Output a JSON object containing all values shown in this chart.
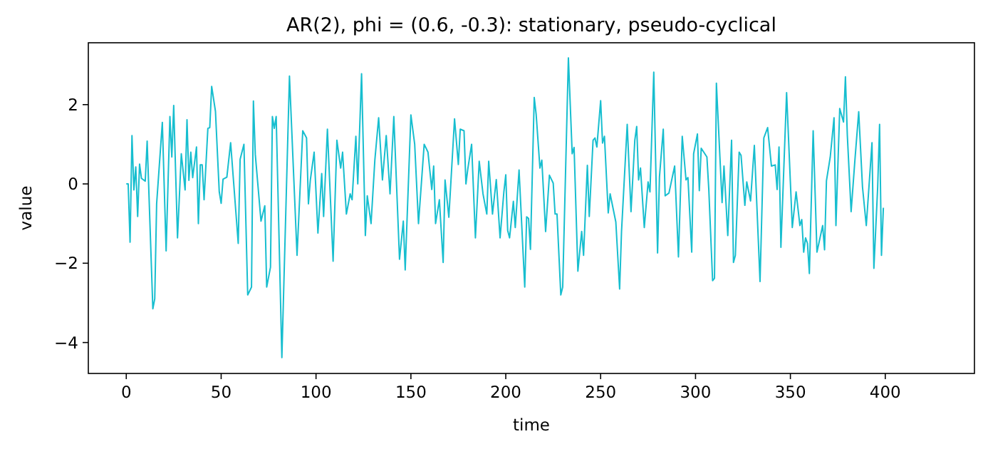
{
  "chart_data": {
    "type": "line",
    "title": "AR(2), phi = (0.6, -0.3): stationary, pseudo-cyclical",
    "xlabel": "time",
    "ylabel": "value",
    "xlim": [
      -20,
      447
    ],
    "xticks": [
      0,
      50,
      100,
      150,
      200,
      250,
      300,
      350,
      400
    ],
    "ylim": [
      -4.78,
      3.56
    ],
    "yticks": [
      -4,
      -2,
      0,
      2
    ],
    "grid": false,
    "series": [
      {
        "color": "#17becf",
        "x": [
          0,
          1,
          2,
          3,
          4,
          5,
          6,
          7,
          8,
          10,
          11,
          14,
          15,
          16,
          19,
          21,
          23,
          24,
          25,
          27,
          29,
          31,
          32,
          33,
          34,
          35,
          37,
          38,
          39,
          40,
          41,
          43,
          44,
          45,
          47,
          49,
          50,
          51,
          53,
          55,
          59,
          60,
          62,
          64,
          66,
          67,
          68,
          71,
          73,
          74,
          76,
          77,
          78,
          79,
          82,
          86,
          90,
          93,
          95,
          96,
          97,
          99,
          101,
          103,
          104,
          106,
          109,
          111,
          113,
          114,
          116,
          118,
          119,
          121,
          122,
          124,
          126,
          127,
          129,
          131,
          133,
          135,
          137,
          139,
          141,
          144,
          146,
          147,
          150,
          152,
          154,
          157,
          159,
          161,
          162,
          163,
          165,
          167,
          168,
          170,
          173,
          175,
          176,
          178,
          179,
          180,
          182,
          184,
          186,
          188,
          190,
          191,
          193,
          195,
          197,
          199,
          200,
          201,
          202,
          204,
          205,
          207,
          210,
          211,
          212,
          213,
          215,
          216,
          218,
          219,
          221,
          223,
          225,
          226,
          227,
          229,
          230,
          233,
          235,
          236,
          238,
          240,
          241,
          243,
          244,
          246,
          247,
          248,
          250,
          251,
          252,
          254,
          255,
          258,
          260,
          261,
          264,
          266,
          268,
          269,
          270,
          271,
          273,
          275,
          276,
          278,
          280,
          281,
          283,
          284,
          286,
          289,
          291,
          293,
          295,
          296,
          298,
          299,
          301,
          302,
          303,
          306,
          307,
          309,
          310,
          311,
          314,
          315,
          317,
          319,
          320,
          321,
          323,
          324,
          326,
          327,
          329,
          331,
          334,
          336,
          338,
          340,
          342,
          343,
          344,
          345,
          348,
          351,
          353,
          355,
          356,
          357,
          358,
          359,
          360,
          362,
          364,
          367,
          368,
          369,
          371,
          373,
          374,
          376,
          378,
          379,
          380,
          382,
          384,
          386,
          388,
          390,
          393,
          394,
          396,
          397,
          398,
          399
        ],
        "values": [
          0,
          0,
          -1.47,
          1.22,
          -0.15,
          0.43,
          -0.82,
          0.5,
          0.14,
          0.07,
          1.08,
          -3.15,
          -2.9,
          -0.5,
          1.55,
          -1.69,
          1.7,
          0.68,
          1.98,
          -1.36,
          0.76,
          -0.15,
          1.62,
          0.09,
          0.8,
          0.16,
          0.93,
          -1,
          0.48,
          0.48,
          -0.4,
          1.4,
          1.42,
          2.46,
          1.83,
          -0.2,
          -0.49,
          0.12,
          0.17,
          1.04,
          -1.5,
          0.62,
          1,
          -2.8,
          -2.6,
          2.09,
          0.74,
          -0.94,
          -0.55,
          -2.6,
          -2.1,
          1.7,
          1.4,
          1.7,
          -4.38,
          2.72,
          -1.8,
          1.34,
          1.16,
          -0.5,
          0.1,
          0.8,
          -1.24,
          0.26,
          -0.82,
          1.38,
          -1.95,
          1.1,
          0.4,
          0.8,
          -0.76,
          -0.25,
          -0.4,
          1.2,
          0,
          2.78,
          -1.3,
          -0.3,
          -1,
          0.6,
          1.67,
          0.1,
          1.22,
          -0.25,
          1.7,
          -1.9,
          -0.94,
          -2.17,
          1.74,
          1,
          -1,
          1,
          0.8,
          -0.14,
          0.45,
          -1,
          -0.4,
          -1.98,
          0.1,
          -0.84,
          1.64,
          0.49,
          1.38,
          1.34,
          0,
          0.38,
          1,
          -1.36,
          0.57,
          -0.25,
          -0.76,
          0.57,
          -0.76,
          0.11,
          -1.36,
          -0.2,
          0.23,
          -1.17,
          -1.36,
          -0.44,
          -1.1,
          0.35,
          -2.6,
          -0.83,
          -0.87,
          -1.65,
          2.18,
          1.76,
          0.4,
          0.6,
          -1.2,
          0.22,
          0.02,
          -0.76,
          -0.76,
          -2.8,
          -2.6,
          3.18,
          0.76,
          0.92,
          -2.2,
          -1.2,
          -1.8,
          0.47,
          -0.82,
          1.1,
          1.16,
          0.93,
          2.1,
          1.03,
          1.2,
          -0.73,
          -0.25,
          -0.96,
          -2.65,
          -1.2,
          1.5,
          -0.7,
          1.1,
          1.45,
          0.1,
          0.4,
          -1.1,
          0.05,
          -0.2,
          2.82,
          -1.74,
          0.18,
          1.38,
          -0.3,
          -0.23,
          0.45,
          -1.84,
          1.2,
          0.1,
          0.16,
          -1.72,
          0.76,
          1.26,
          -0.17,
          0.9,
          0.68,
          -0.14,
          -2.44,
          -2.38,
          2.54,
          -0.47,
          0.45,
          -1.3,
          1.1,
          -1.98,
          -1.8,
          0.8,
          0.72,
          -0.54,
          0.05,
          -0.43,
          0.97,
          -2.46,
          1.16,
          1.42,
          0.45,
          0.48,
          -0.14,
          0.93,
          -1.6,
          2.3,
          -1.1,
          -0.2,
          -1.05,
          -0.9,
          -1.72,
          -1.36,
          -1.5,
          -2.26,
          1.34,
          -1.72,
          -1.05,
          -1.66,
          0.08,
          0.68,
          1.67,
          -1.05,
          1.9,
          1.56,
          2.7,
          1.23,
          -0.7,
          0.6,
          1.82,
          -0.08,
          -1.05,
          1.04,
          -2.13,
          -0.08,
          1.5,
          -1.8,
          -0.6
        ]
      }
    ]
  }
}
